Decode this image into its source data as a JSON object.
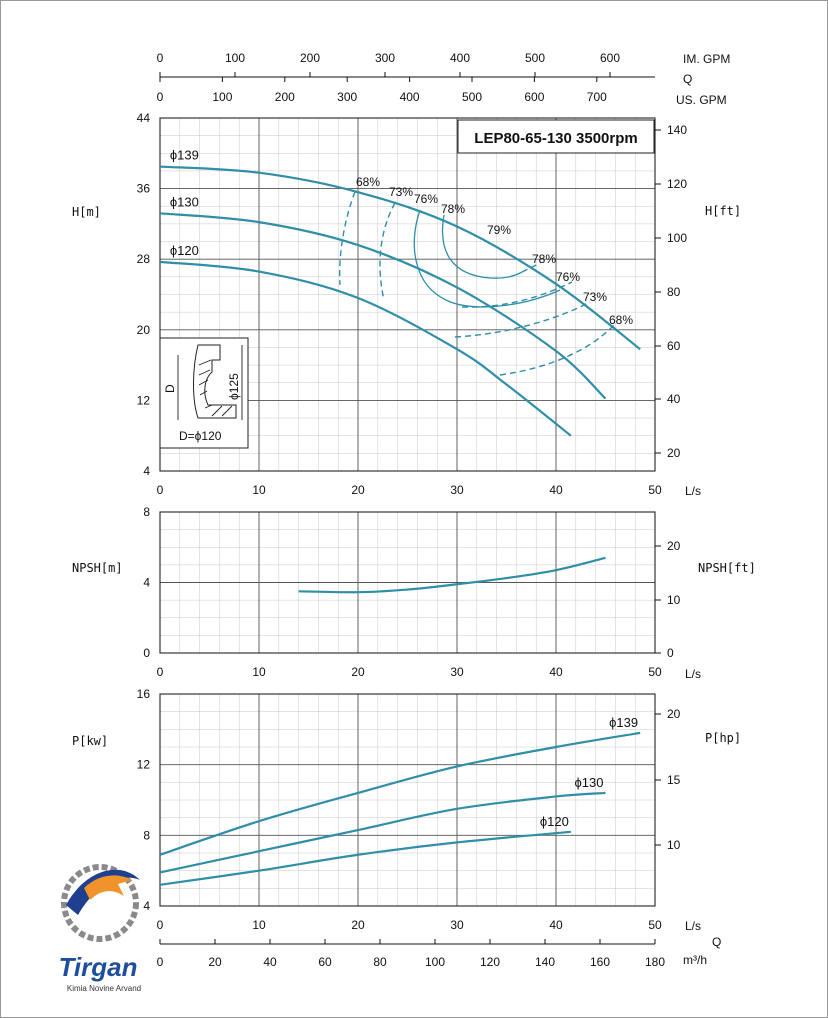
{
  "title": "LEP80-65-130 3500rpm",
  "brand": {
    "name": "Tirgan",
    "tagline": "Kimia Novine Arvand"
  },
  "top_axes": {
    "im_gpm": {
      "label": "IM. GPM",
      "ticks": [
        "0",
        "100",
        "200",
        "300",
        "400",
        "500",
        "600"
      ]
    },
    "q_label": "Q",
    "us_gpm": {
      "label": "US. GPM",
      "ticks": [
        "0",
        "100",
        "200",
        "300",
        "400",
        "500",
        "600",
        "700"
      ]
    }
  },
  "bottom_axis": {
    "ls_label": "L/s",
    "m3h_label": "m³/h",
    "q_label": "Q",
    "m3h_ticks": [
      "0",
      "20",
      "40",
      "60",
      "80",
      "100",
      "120",
      "140",
      "160",
      "180"
    ]
  },
  "inset": {
    "label_d": "D",
    "label_dia": "ϕ125",
    "caption": "D=ϕ120"
  },
  "chart_data": [
    {
      "type": "line",
      "name": "head",
      "ylabel": "H[m]",
      "ylabel_right": "H[ft]",
      "xlabel": "L/s",
      "xlim": [
        0,
        50
      ],
      "ylim": [
        4,
        44
      ],
      "x_ticks": [
        "0",
        "10",
        "20",
        "30",
        "40",
        "50"
      ],
      "y_ticks": [
        "4",
        "12",
        "20",
        "28",
        "36",
        "44"
      ],
      "y_ticks_right": [
        "20",
        "40",
        "60",
        "80",
        "100",
        "120",
        "140"
      ],
      "series": [
        {
          "name": "ϕ139",
          "x": [
            0,
            10,
            20,
            30,
            40,
            48.5
          ],
          "y": [
            38.5,
            37.8,
            35.6,
            31.7,
            25.2,
            17.8
          ]
        },
        {
          "name": "ϕ130",
          "x": [
            0,
            10,
            20,
            30,
            40,
            45
          ],
          "y": [
            33.2,
            32.2,
            29.6,
            24.8,
            17.6,
            12.2
          ]
        },
        {
          "name": "ϕ120",
          "x": [
            0,
            10,
            20,
            30,
            35,
            41.5
          ],
          "y": [
            27.7,
            26.6,
            23.6,
            17.8,
            13.8,
            8.0
          ]
        }
      ],
      "efficiency_labels": [
        "68%",
        "73%",
        "76%",
        "78%",
        "79%",
        "78%",
        "76%",
        "73%",
        "68%"
      ]
    },
    {
      "type": "line",
      "name": "npsh",
      "ylabel": "NPSH[m]",
      "ylabel_right": "NPSH[ft]",
      "xlabel": "L/s",
      "xlim": [
        0,
        50
      ],
      "ylim": [
        0,
        8
      ],
      "x_ticks": [
        "0",
        "10",
        "20",
        "30",
        "40",
        "50"
      ],
      "y_ticks": [
        "0",
        "4",
        "8"
      ],
      "y_ticks_right": [
        "0",
        "10",
        "20"
      ],
      "series": [
        {
          "name": "",
          "x": [
            14,
            20,
            25,
            30,
            35,
            40,
            45
          ],
          "y": [
            3.5,
            3.45,
            3.6,
            3.9,
            4.25,
            4.7,
            5.4
          ]
        }
      ]
    },
    {
      "type": "line",
      "name": "power",
      "ylabel": "P[kw]",
      "ylabel_right": "P[hp]",
      "xlabel": "L/s",
      "xlim": [
        0,
        50
      ],
      "ylim": [
        4,
        16
      ],
      "x_ticks": [
        "0",
        "10",
        "20",
        "30",
        "40",
        "50"
      ],
      "y_ticks": [
        "4",
        "8",
        "12",
        "16"
      ],
      "y_ticks_right": [
        "10",
        "15",
        "20"
      ],
      "series": [
        {
          "name": "ϕ139",
          "x": [
            0,
            10,
            20,
            30,
            40,
            48.5
          ],
          "y": [
            6.9,
            8.8,
            10.4,
            11.9,
            13.0,
            13.8
          ]
        },
        {
          "name": "ϕ130",
          "x": [
            0,
            10,
            20,
            30,
            40,
            45
          ],
          "y": [
            5.9,
            7.1,
            8.3,
            9.5,
            10.2,
            10.4
          ]
        },
        {
          "name": "ϕ120",
          "x": [
            0,
            10,
            20,
            30,
            41.5
          ],
          "y": [
            5.2,
            6.0,
            6.9,
            7.6,
            8.2
          ]
        }
      ]
    }
  ]
}
